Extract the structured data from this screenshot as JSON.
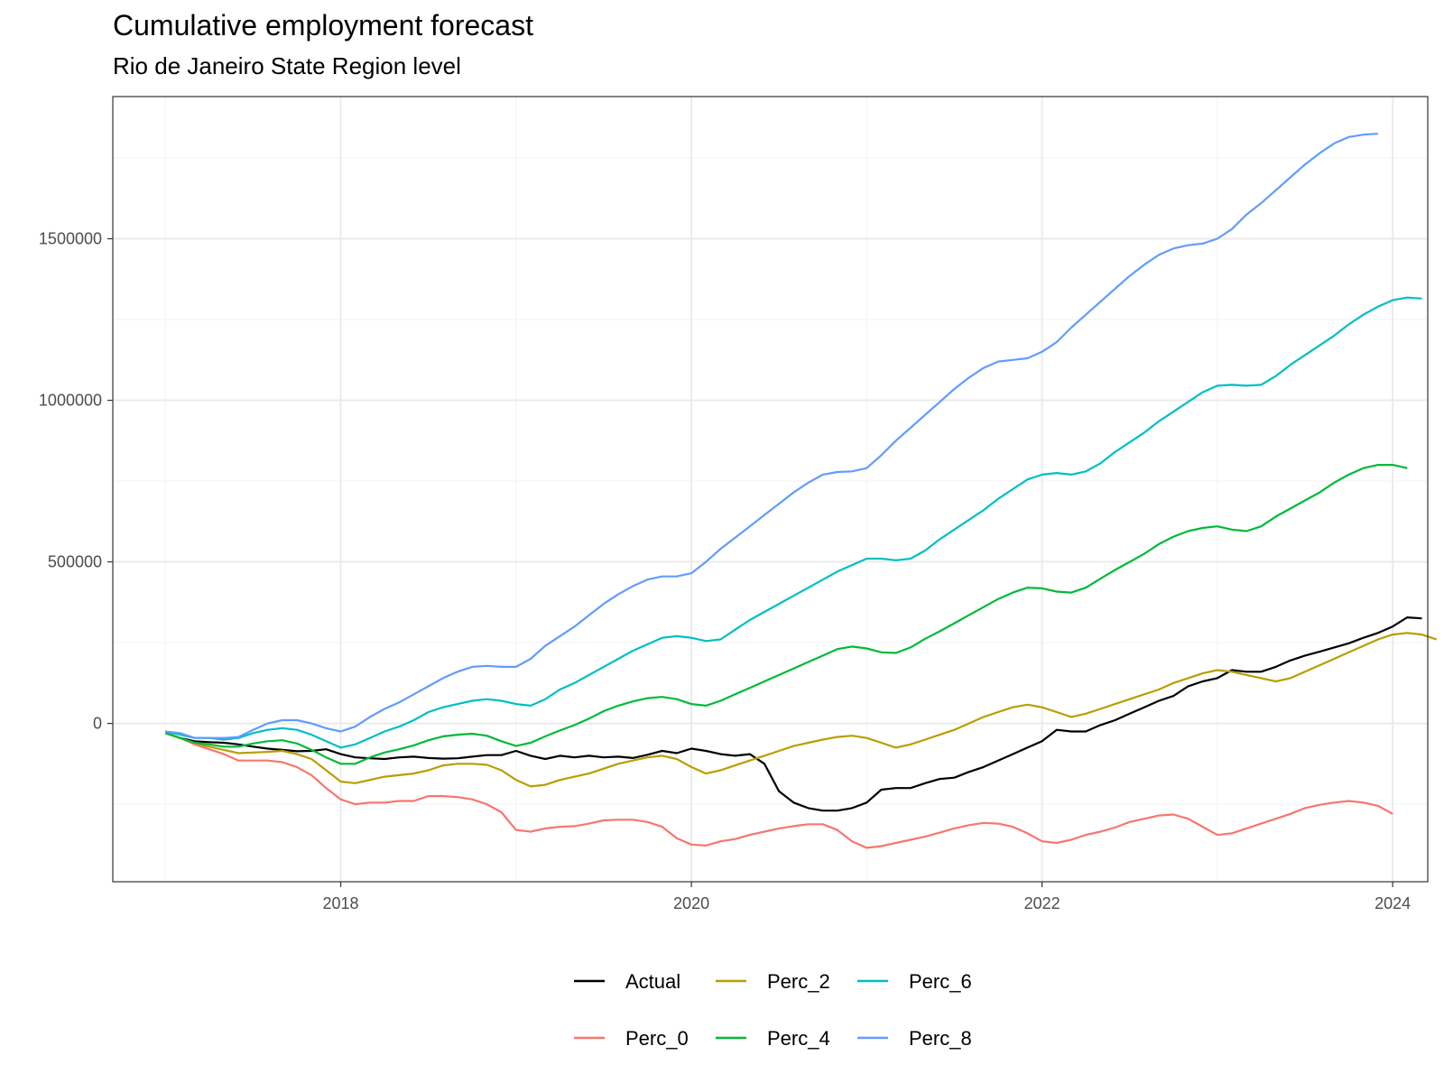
{
  "chart_data": {
    "type": "line",
    "title": "Cumulative employment forecast",
    "subtitle": "Rio de Janeiro State Region level",
    "xlabel": "",
    "ylabel": "",
    "xlim": [
      2016.7,
      2024.2
    ],
    "ylim": [
      -490000,
      1940000
    ],
    "x_ticks": [
      2018,
      2020,
      2022,
      2024
    ],
    "x_tick_labels": [
      "2018",
      "2020",
      "2022",
      "2024"
    ],
    "y_ticks": [
      0,
      500000,
      1000000,
      1500000
    ],
    "y_tick_labels": [
      "0",
      "500000",
      "1000000",
      "1500000"
    ],
    "grid": true,
    "legend_position": "bottom",
    "x_start": 2017.0,
    "x_step": 0.08333,
    "series": [
      {
        "name": "Actual",
        "color": "#000000",
        "values": [
          -30000,
          -45000,
          -55000,
          -58000,
          -60000,
          -65000,
          -72000,
          -78000,
          -82000,
          -86000,
          -85000,
          -80000,
          -95000,
          -105000,
          -108000,
          -110000,
          -105000,
          -103000,
          -107000,
          -109000,
          -108000,
          -103000,
          -98000,
          -98000,
          -85000,
          -100000,
          -110000,
          -100000,
          -105000,
          -100000,
          -105000,
          -103000,
          -107000,
          -97000,
          -85000,
          -92000,
          -78000,
          -85000,
          -95000,
          -100000,
          -95000,
          -125000,
          -210000,
          -245000,
          -262000,
          -270000,
          -270000,
          -262000,
          -245000,
          -205000,
          -200000,
          -200000,
          -185000,
          -172000,
          -168000,
          -150000,
          -135000,
          -115000,
          -95000,
          -75000,
          -55000,
          -20000,
          -25000,
          -25000,
          -5000,
          10000,
          30000,
          50000,
          70000,
          85000,
          115000,
          130000,
          140000,
          165000,
          160000,
          160000,
          175000,
          195000,
          210000,
          222000,
          235000,
          248000,
          265000,
          280000,
          300000,
          328000,
          325000
        ]
      },
      {
        "name": "Perc_2",
        "color": "#B79F00",
        "values": [
          -30000,
          -45000,
          -62000,
          -72000,
          -82000,
          -92000,
          -90000,
          -88000,
          -85000,
          -95000,
          -110000,
          -145000,
          -180000,
          -185000,
          -175000,
          -165000,
          -160000,
          -155000,
          -145000,
          -130000,
          -125000,
          -125000,
          -128000,
          -145000,
          -175000,
          -195000,
          -190000,
          -175000,
          -165000,
          -155000,
          -140000,
          -125000,
          -115000,
          -105000,
          -100000,
          -110000,
          -135000,
          -155000,
          -145000,
          -130000,
          -115000,
          -100000,
          -85000,
          -70000,
          -60000,
          -50000,
          -42000,
          -38000,
          -45000,
          -60000,
          -75000,
          -65000,
          -50000,
          -35000,
          -20000,
          0,
          20000,
          35000,
          50000,
          58000,
          50000,
          35000,
          20000,
          30000,
          45000,
          60000,
          75000,
          90000,
          105000,
          125000,
          140000,
          155000,
          165000,
          160000,
          150000,
          140000,
          130000,
          140000,
          160000,
          180000,
          200000,
          220000,
          240000,
          260000,
          275000,
          280000,
          275000,
          260000
        ]
      },
      {
        "name": "Perc_6",
        "color": "#00BFC4",
        "values": [
          -25000,
          -35000,
          -45000,
          -45000,
          -50000,
          -45000,
          -30000,
          -20000,
          -15000,
          -20000,
          -35000,
          -55000,
          -75000,
          -65000,
          -45000,
          -25000,
          -10000,
          10000,
          35000,
          50000,
          60000,
          70000,
          75000,
          70000,
          60000,
          55000,
          75000,
          105000,
          125000,
          150000,
          175000,
          200000,
          225000,
          245000,
          265000,
          270000,
          265000,
          255000,
          260000,
          290000,
          320000,
          345000,
          370000,
          395000,
          420000,
          445000,
          470000,
          490000,
          510000,
          510000,
          505000,
          510000,
          535000,
          570000,
          600000,
          630000,
          660000,
          695000,
          725000,
          755000,
          770000,
          775000,
          770000,
          780000,
          805000,
          840000,
          870000,
          900000,
          935000,
          965000,
          995000,
          1025000,
          1045000,
          1048000,
          1045000,
          1048000,
          1075000,
          1110000,
          1140000,
          1170000,
          1200000,
          1235000,
          1265000,
          1290000,
          1310000,
          1318000,
          1315000
        ]
      },
      {
        "name": "Perc_0",
        "color": "#F8766D",
        "values": [
          -30000,
          -45000,
          -65000,
          -80000,
          -95000,
          -115000,
          -115000,
          -115000,
          -120000,
          -135000,
          -160000,
          -200000,
          -235000,
          -250000,
          -245000,
          -245000,
          -240000,
          -240000,
          -225000,
          -225000,
          -228000,
          -235000,
          -250000,
          -275000,
          -330000,
          -335000,
          -325000,
          -320000,
          -318000,
          -310000,
          -300000,
          -298000,
          -298000,
          -305000,
          -320000,
          -355000,
          -375000,
          -378000,
          -365000,
          -358000,
          -345000,
          -335000,
          -325000,
          -318000,
          -312000,
          -312000,
          -330000,
          -365000,
          -385000,
          -380000,
          -370000,
          -360000,
          -350000,
          -338000,
          -325000,
          -315000,
          -308000,
          -310000,
          -320000,
          -340000,
          -365000,
          -370000,
          -360000,
          -345000,
          -335000,
          -322000,
          -305000,
          -295000,
          -285000,
          -282000,
          -295000,
          -320000,
          -345000,
          -340000,
          -325000,
          -310000,
          -295000,
          -280000,
          -262000,
          -252000,
          -245000,
          -240000,
          -245000,
          -255000,
          -280000
        ]
      },
      {
        "name": "Perc_4",
        "color": "#00BA38",
        "values": [
          -30000,
          -45000,
          -60000,
          -65000,
          -72000,
          -72000,
          -62000,
          -55000,
          -52000,
          -62000,
          -82000,
          -105000,
          -125000,
          -125000,
          -105000,
          -90000,
          -80000,
          -68000,
          -52000,
          -40000,
          -35000,
          -32000,
          -38000,
          -55000,
          -70000,
          -60000,
          -40000,
          -22000,
          -5000,
          15000,
          38000,
          55000,
          68000,
          78000,
          82000,
          75000,
          60000,
          55000,
          70000,
          90000,
          110000,
          130000,
          150000,
          170000,
          190000,
          210000,
          230000,
          238000,
          232000,
          220000,
          218000,
          235000,
          262000,
          285000,
          310000,
          335000,
          360000,
          385000,
          405000,
          420000,
          418000,
          408000,
          405000,
          420000,
          448000,
          475000,
          500000,
          525000,
          555000,
          578000,
          595000,
          605000,
          610000,
          600000,
          595000,
          610000,
          640000,
          665000,
          690000,
          715000,
          745000,
          770000,
          790000,
          800000,
          800000,
          790000
        ]
      },
      {
        "name": "Perc_8",
        "color": "#619CFF",
        "values": [
          -25000,
          -30000,
          -45000,
          -45000,
          -45000,
          -42000,
          -20000,
          0,
          10000,
          10000,
          0,
          -15000,
          -25000,
          -10000,
          20000,
          45000,
          65000,
          90000,
          115000,
          140000,
          160000,
          175000,
          178000,
          175000,
          175000,
          200000,
          240000,
          270000,
          300000,
          335000,
          370000,
          400000,
          425000,
          445000,
          455000,
          455000,
          465000,
          500000,
          540000,
          575000,
          610000,
          645000,
          680000,
          715000,
          745000,
          770000,
          778000,
          780000,
          790000,
          830000,
          875000,
          915000,
          955000,
          995000,
          1035000,
          1070000,
          1100000,
          1120000,
          1125000,
          1130000,
          1150000,
          1180000,
          1225000,
          1265000,
          1305000,
          1345000,
          1385000,
          1420000,
          1450000,
          1470000,
          1480000,
          1485000,
          1500000,
          1530000,
          1575000,
          1610000,
          1650000,
          1690000,
          1730000,
          1765000,
          1795000,
          1815000,
          1822000,
          1825000
        ]
      }
    ],
    "legend_order": [
      "Actual",
      "Perc_2",
      "Perc_6",
      "Perc_0",
      "Perc_4",
      "Perc_8"
    ]
  }
}
